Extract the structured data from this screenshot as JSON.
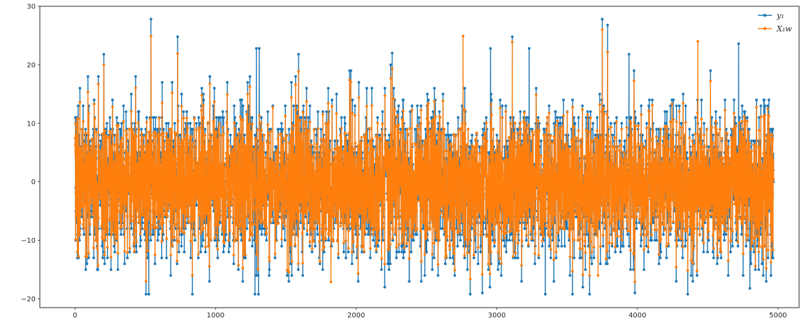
{
  "chart_data": {
    "type": "line",
    "title": "",
    "xlabel": "",
    "ylabel": "",
    "xlim": [
      -250,
      5150
    ],
    "ylim": [
      -21.5,
      30
    ],
    "xticks": [
      0,
      1000,
      2000,
      3000,
      4000,
      5000
    ],
    "xtick_labels": [
      "0",
      "1000",
      "2000",
      "3000",
      "4000",
      "5000"
    ],
    "yticks": [
      -20,
      -10,
      0,
      10,
      20,
      30
    ],
    "ytick_labels": [
      "−20",
      "−10",
      "0",
      "10",
      "20",
      "30"
    ],
    "grid": false,
    "legend_position": "top-right",
    "n_points": 4970,
    "series": [
      {
        "name": "y₁",
        "legend_label": "y₁",
        "color": "#1f77b4",
        "marker": "circle",
        "x_range": [
          0,
          4969
        ],
        "min": -19.2,
        "max": 27.8,
        "peaks": [
          [
            540,
            27.8
          ],
          [
            3750,
            27.8
          ],
          [
            1290,
            22.8
          ],
          [
            1310,
            22.8
          ],
          [
            2955,
            22.8
          ],
          [
            4720,
            23.6
          ],
          [
            730,
            24.8
          ],
          [
            3110,
            24.8
          ],
          [
            3230,
            22.8
          ],
          [
            3940,
            21.8
          ],
          [
            205,
            21.8
          ],
          [
            1590,
            21.8
          ]
        ],
        "troughs": [
          [
            505,
            -19.2
          ],
          [
            525,
            -19.2
          ],
          [
            835,
            -19.2
          ],
          [
            1280,
            -19.2
          ],
          [
            1305,
            -19.2
          ],
          [
            3345,
            -19.2
          ],
          [
            3660,
            -19.2
          ],
          [
            4800,
            -18.2
          ]
        ]
      },
      {
        "name": "X₁w",
        "legend_label": "X₁w",
        "color": "#ff7f0e",
        "marker": "circle",
        "x_range": [
          0,
          4969
        ],
        "min": -17.1,
        "max": 26.0,
        "peaks": [
          [
            540,
            24.9
          ],
          [
            3750,
            26.0
          ],
          [
            2760,
            24.9
          ],
          [
            4430,
            24.0
          ],
          [
            730,
            21.9
          ],
          [
            3110,
            23.9
          ],
          [
            205,
            20.0
          ],
          [
            1590,
            18.9
          ]
        ],
        "troughs": [
          [
            505,
            -17.0
          ],
          [
            1820,
            -17.1
          ],
          [
            3660,
            -16.0
          ],
          [
            835,
            -16.0
          ],
          [
            3720,
            -16.0
          ]
        ]
      }
    ]
  }
}
